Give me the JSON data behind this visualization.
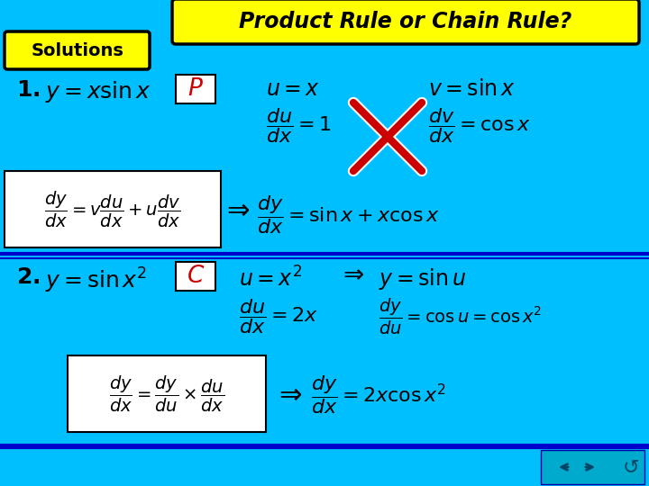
{
  "bg_color": "#00BFFF",
  "title_text": "Product Rule or Chain Rule?",
  "title_bg": "#FFFF00",
  "title_border": "#000000",
  "solutions_bg": "#FFFF00",
  "solutions_border": "#000000",
  "white_box_color": "#FFFFFF",
  "text_color": "#000000",
  "red_color": "#CC0000",
  "dark_blue_line": "#0000AA"
}
